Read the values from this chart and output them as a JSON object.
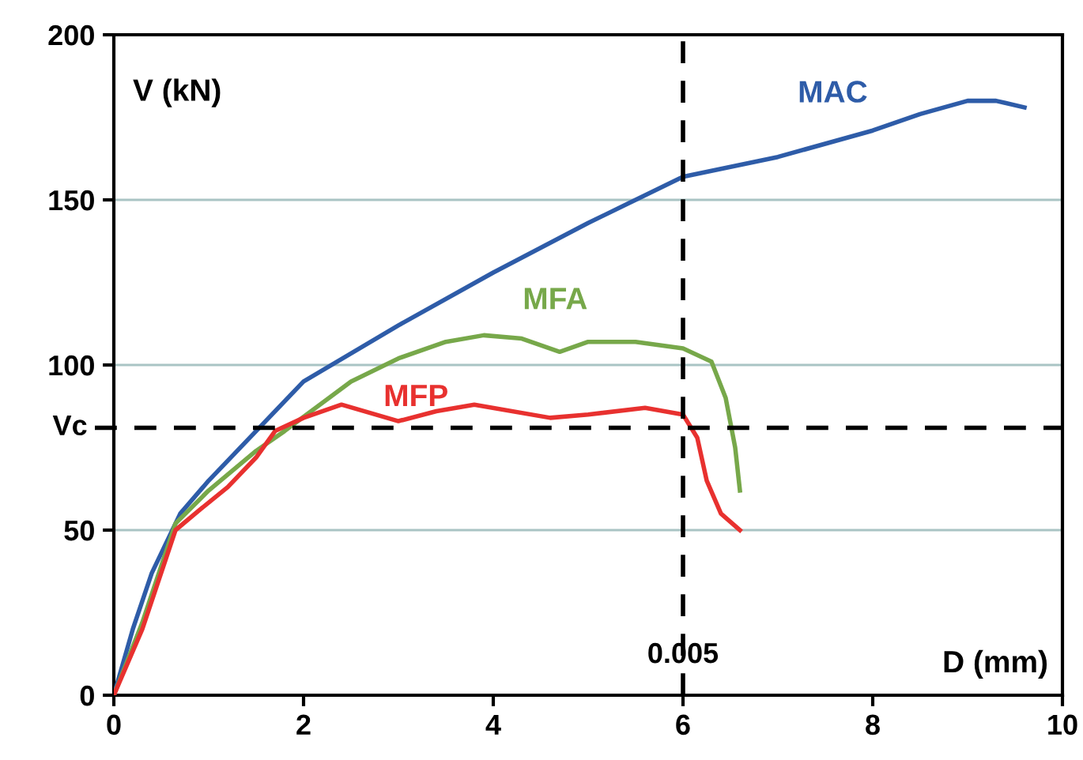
{
  "chart_data": {
    "type": "line",
    "xlabel": "D (mm)",
    "ylabel": "V (kN)",
    "xlim": [
      0,
      10
    ],
    "ylim": [
      0,
      200
    ],
    "xticks": [
      0,
      2,
      4,
      6,
      8,
      10
    ],
    "yticks": [
      0,
      50,
      100,
      150,
      200
    ],
    "grid": "y",
    "marker": "none",
    "line_style": "solid",
    "ref_lines": [
      {
        "axis": "y",
        "value": 81,
        "label": "Vc",
        "color": "#000000",
        "line_style": "dashed"
      },
      {
        "axis": "x",
        "value": 6,
        "color": "#000000",
        "line_style": "dashed"
      }
    ],
    "annotations": [
      "0.005"
    ],
    "series": [
      {
        "name": "MAC",
        "color": "#2e5ca8",
        "x": [
          0,
          0.2,
          0.4,
          0.7,
          1,
          1.5,
          2,
          3,
          4,
          5,
          6,
          7,
          8,
          8.5,
          9,
          9.3,
          9.6
        ],
        "values": [
          0,
          20,
          37,
          55,
          65,
          80,
          95,
          112,
          128,
          143,
          157,
          163,
          171,
          176,
          180,
          180,
          178
        ]
      },
      {
        "name": "MFA",
        "color": "#77a84a",
        "x": [
          0,
          0.3,
          0.65,
          1,
          1.5,
          1.8,
          2.5,
          3,
          3.5,
          3.9,
          4.3,
          4.7,
          5,
          5.5,
          6,
          6.3,
          6.45,
          6.55,
          6.6
        ],
        "values": [
          0,
          22,
          52,
          62,
          74,
          80,
          95,
          102,
          107,
          109,
          108,
          104,
          107,
          107,
          105,
          101,
          90,
          75,
          62
        ]
      },
      {
        "name": "MFP",
        "color": "#e8312f",
        "x": [
          0,
          0.3,
          0.65,
          0.9,
          1.2,
          1.5,
          1.7,
          2,
          2.4,
          3,
          3.4,
          3.8,
          4.6,
          5,
          5.6,
          6,
          6.15,
          6.25,
          6.4,
          6.6
        ],
        "values": [
          0,
          20,
          50,
          56,
          63,
          72,
          80,
          84,
          88,
          83,
          86,
          88,
          84,
          85,
          87,
          85,
          78,
          65,
          55,
          50
        ]
      }
    ]
  }
}
